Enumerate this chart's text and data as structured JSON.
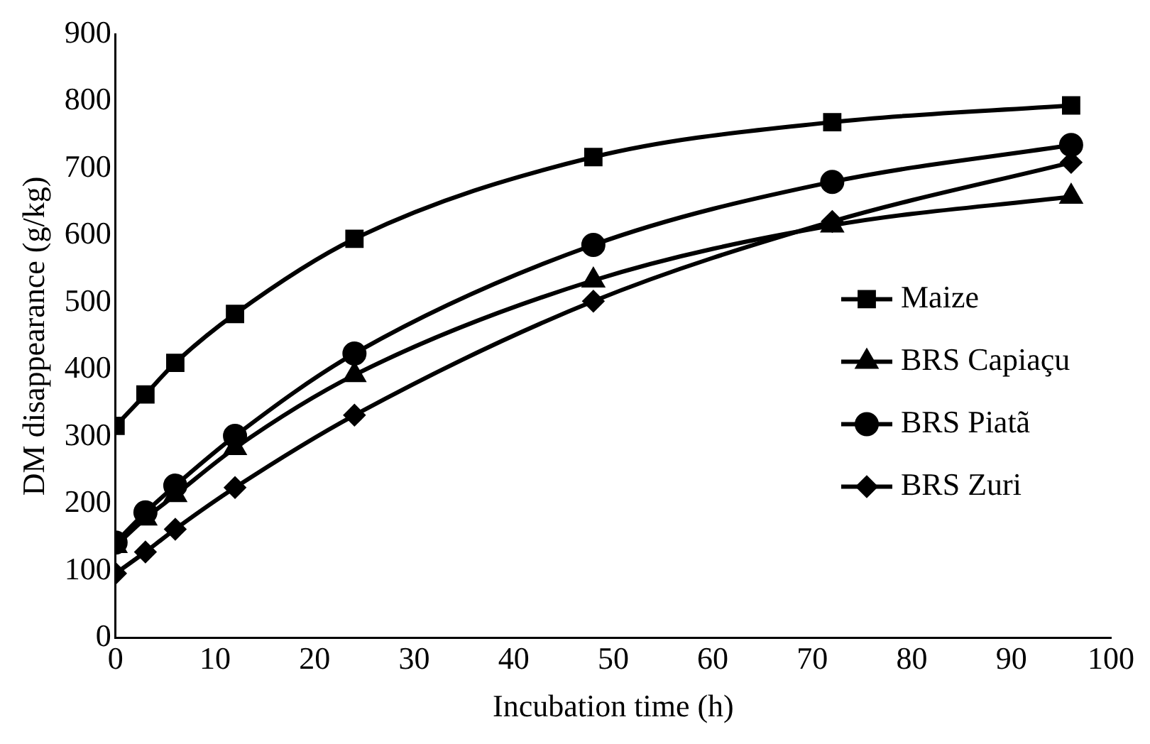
{
  "chart_data": {
    "type": "line",
    "xlabel": "Incubation time (h)",
    "ylabel": "DM disappearance (g/kg)",
    "x": [
      0,
      3,
      6,
      12,
      24,
      48,
      72,
      96
    ],
    "series": [
      {
        "name": "Maize",
        "color": "#000000",
        "marker": "square",
        "values": [
          316,
          363,
          410,
          483,
          595,
          717,
          769,
          794
        ]
      },
      {
        "name": "BRS Capiaçu",
        "color": "#000000",
        "marker": "triangle",
        "values": [
          137,
          178,
          213,
          283,
          392,
          533,
          615,
          658
        ]
      },
      {
        "name": "BRS Piatã",
        "color": "#000000",
        "marker": "circle",
        "values": [
          142,
          187,
          227,
          301,
          424,
          586,
          680,
          735
        ]
      },
      {
        "name": "BRS Zuri",
        "color": "#000000",
        "marker": "diamond",
        "values": [
          96,
          128,
          162,
          224,
          332,
          502,
          621,
          709
        ]
      }
    ],
    "xlim": [
      0,
      100
    ],
    "xticks": [
      0,
      10,
      20,
      30,
      40,
      50,
      60,
      70,
      80,
      90,
      100
    ],
    "ylim": [
      0,
      900
    ],
    "yticks": [
      0,
      100,
      200,
      300,
      400,
      500,
      600,
      700,
      800,
      900
    ],
    "grid": false,
    "legend": "right"
  }
}
